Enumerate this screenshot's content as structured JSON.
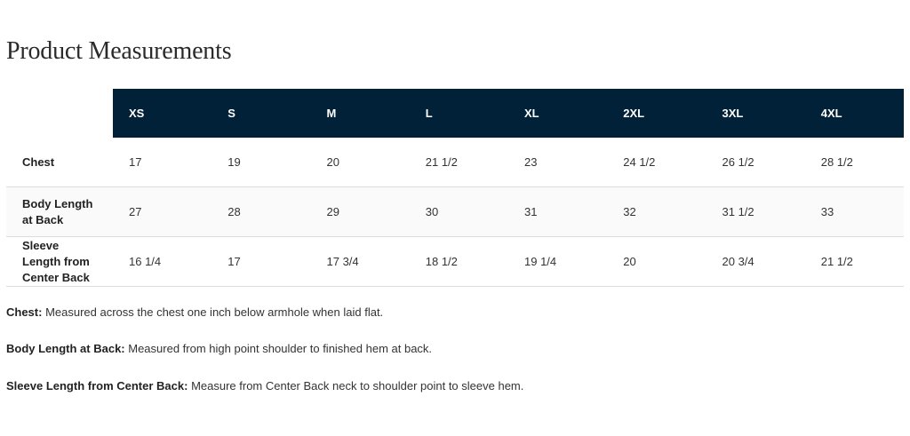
{
  "title": "Product Measurements",
  "colors": {
    "header_bg": "#012138",
    "header_text": "#ffffff",
    "alt_row_bg": "#fafafa"
  },
  "table": {
    "sizes": [
      "XS",
      "S",
      "M",
      "L",
      "XL",
      "2XL",
      "3XL",
      "4XL"
    ],
    "rows": [
      {
        "label": "Chest",
        "values": [
          "17",
          "19",
          "20",
          "21 1/2",
          "23",
          "24 1/2",
          "26 1/2",
          "28 1/2"
        ]
      },
      {
        "label": "Body Length at Back",
        "values": [
          "27",
          "28",
          "29",
          "30",
          "31",
          "32",
          "31 1/2",
          "33"
        ]
      },
      {
        "label": "Sleeve Length from Center Back",
        "values": [
          "16 1/4",
          "17",
          "17 3/4",
          "18 1/2",
          "19 1/4",
          "20",
          "20 3/4",
          "21 1/2"
        ]
      }
    ]
  },
  "notes": [
    {
      "term": "Chest:",
      "text": " Measured across the chest one inch below armhole when laid flat."
    },
    {
      "term": "Body Length at Back:",
      "text": " Measured from high point shoulder to finished hem at back."
    },
    {
      "term": "Sleeve Length from Center Back:",
      "text": " Measure from Center Back neck to shoulder point to sleeve hem."
    }
  ]
}
